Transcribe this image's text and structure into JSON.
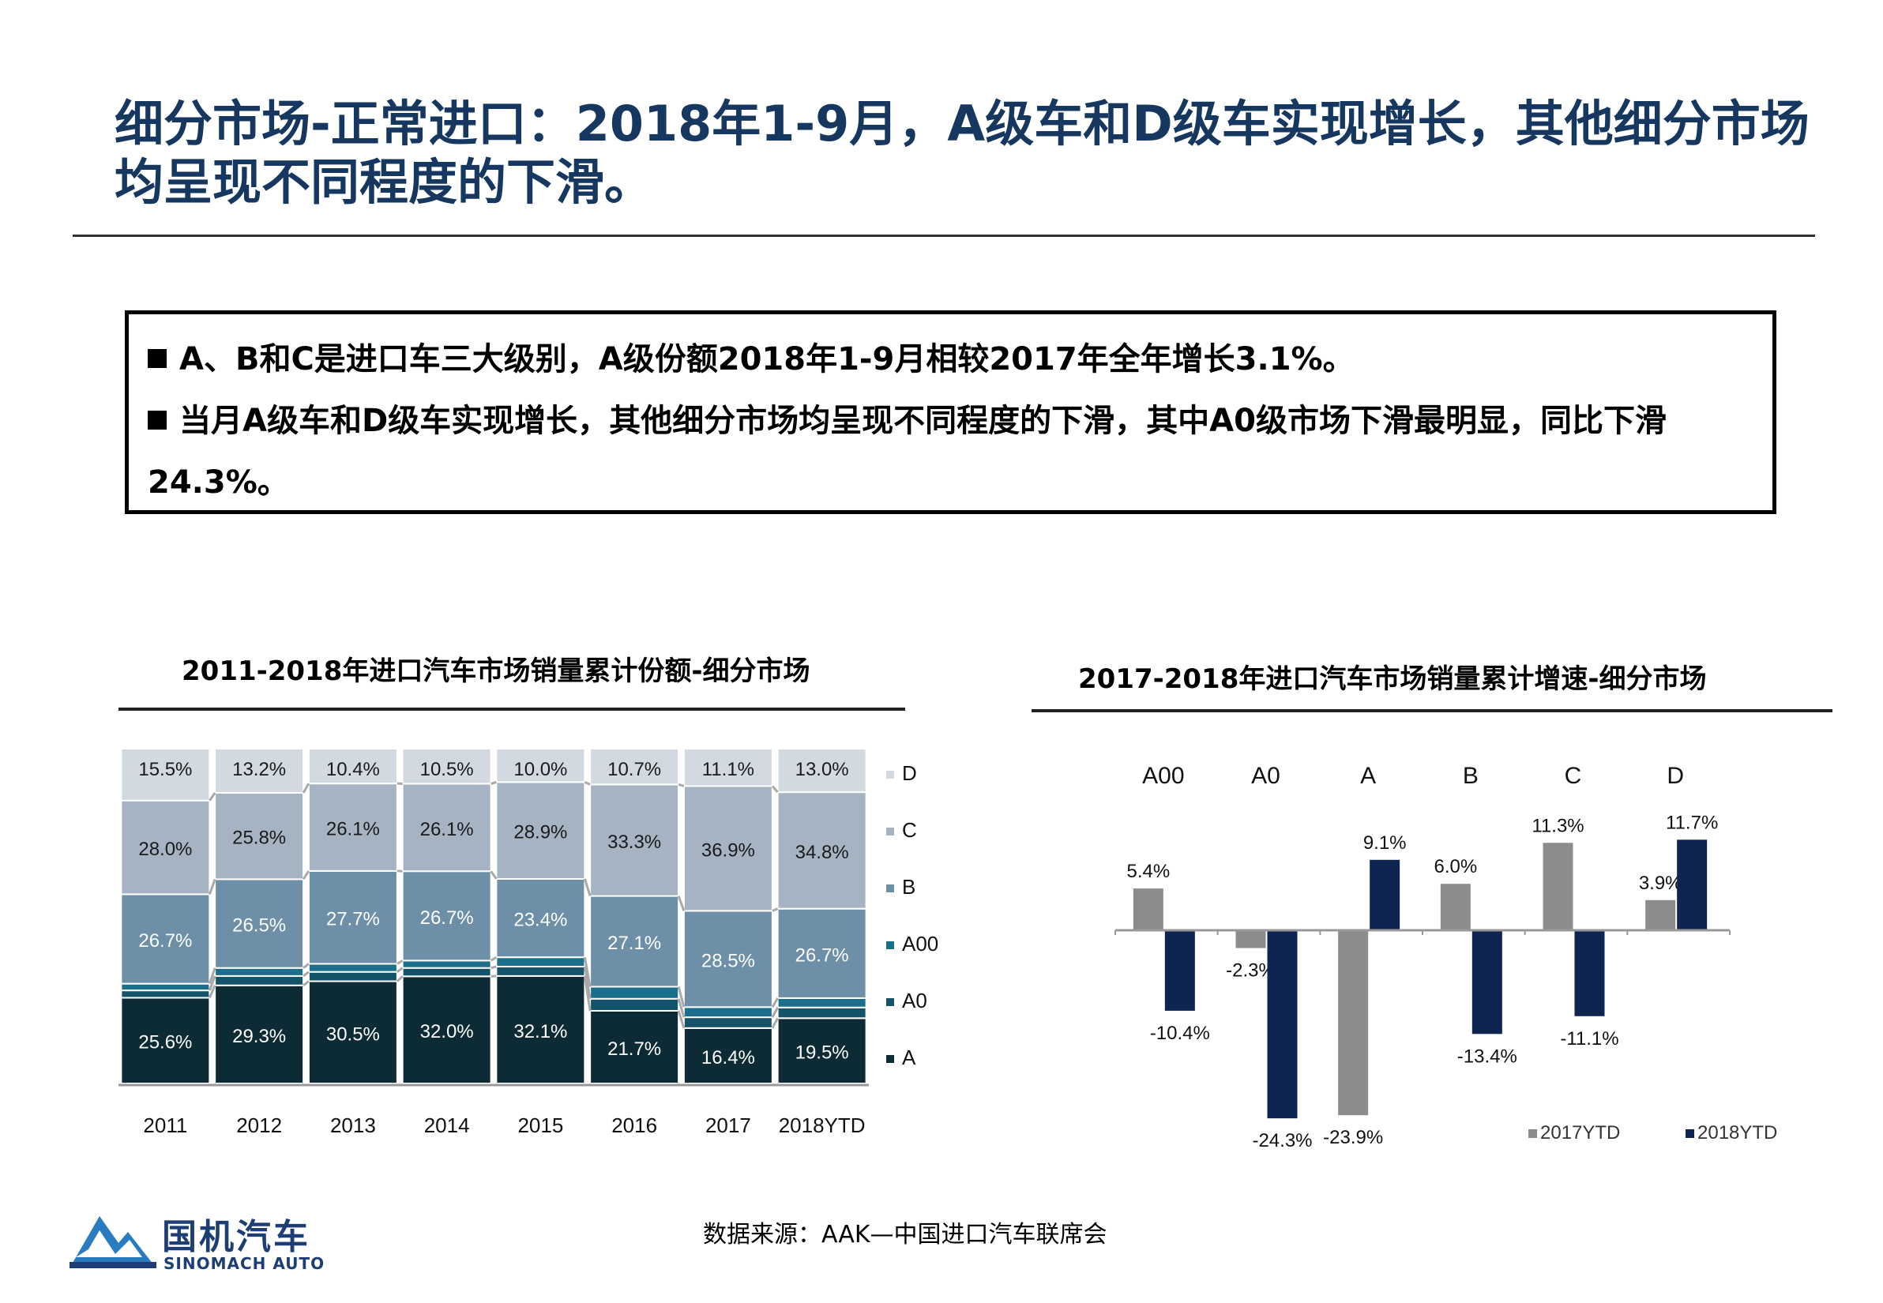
{
  "page": {
    "title": "细分市场-正常进口：2018年1-9月，A级车和D级车实现增长，其他细分市场均呈现不同程度的下滑。",
    "bullets": [
      "A、B和C是进口车三大级别，A级份额2018年1-9月相较2017年全年增长3.1%。",
      "当月A级车和D级车实现增长，其他细分市场均呈现不同程度的下滑，其中A0级市场下滑最明显，同比下滑24.3%。"
    ],
    "source": "数据来源：AAK—中国进口汽车联席会",
    "logo_cn": "国机汽车",
    "logo_en": "SINOMACH AUTO"
  },
  "chart_data": [
    {
      "type": "bar",
      "stacked": true,
      "normalized": true,
      "title": "2011-2018年进口汽车市场销量累计份额-细分市场",
      "categories": [
        "2011",
        "2012",
        "2013",
        "2014",
        "2015",
        "2016",
        "2017",
        "2018YTD"
      ],
      "series": [
        {
          "name": "A",
          "color": "#0c2b35",
          "values": [
            25.6,
            29.3,
            30.5,
            32.0,
            32.1,
            21.7,
            16.4,
            19.5
          ],
          "labels": [
            "25.6%",
            "29.3%",
            "30.5%",
            "32.0%",
            "32.1%",
            "21.7%",
            "16.4%",
            "19.5%"
          ]
        },
        {
          "name": "A0",
          "color": "#15536a",
          "values": [
            2.2,
            2.8,
            2.8,
            2.5,
            2.8,
            3.6,
            3.2,
            3.2
          ],
          "labels": []
        },
        {
          "name": "A00",
          "color": "#1c6f8a",
          "values": [
            2.0,
            2.4,
            2.4,
            2.2,
            2.8,
            3.6,
            3.0,
            2.8
          ],
          "labels": []
        },
        {
          "name": "B",
          "color": "#6e8fa8",
          "values": [
            26.7,
            26.5,
            27.7,
            26.7,
            23.4,
            27.1,
            28.5,
            26.7
          ],
          "labels": [
            "26.7%",
            "26.5%",
            "27.7%",
            "26.7%",
            "23.4%",
            "27.1%",
            "28.5%",
            "26.7%"
          ]
        },
        {
          "name": "C",
          "color": "#a5b3c3",
          "values": [
            28.0,
            25.8,
            26.1,
            26.1,
            28.9,
            33.3,
            36.9,
            34.8
          ],
          "labels": [
            "28.0%",
            "25.8%",
            "26.1%",
            "26.1%",
            "28.9%",
            "33.3%",
            "36.9%",
            "34.8%"
          ]
        },
        {
          "name": "D",
          "color": "#d3d9e1",
          "values": [
            15.5,
            13.2,
            10.4,
            10.5,
            10.0,
            10.7,
            11.1,
            13.0
          ],
          "labels": [
            "15.5%",
            "13.2%",
            "10.4%",
            "10.5%",
            "10.0%",
            "10.7%",
            "11.1%",
            "13.0%"
          ]
        }
      ],
      "legend": [
        "D",
        "C",
        "B",
        "A00",
        "A0",
        "A"
      ],
      "legend_position": "right",
      "series_lines": true
    },
    {
      "type": "bar",
      "title": "2017-2018年进口汽车市场销量累计增速-细分市场",
      "categories": [
        "A00",
        "A0",
        "A",
        "B",
        "C",
        "D"
      ],
      "series": [
        {
          "name": "2017YTD",
          "color": "#8c8c8c",
          "values": [
            5.4,
            -2.3,
            -23.9,
            6.0,
            11.3,
            3.9
          ],
          "labels": [
            "5.4%",
            "-2.3%",
            "-23.9%",
            "6.0%",
            "11.3%",
            "3.9%"
          ]
        },
        {
          "name": "2018YTD",
          "color": "#0d2550",
          "values": [
            -10.4,
            -24.3,
            9.1,
            -13.4,
            -11.1,
            11.7
          ],
          "labels": [
            "-10.4%",
            "-24.3%",
            "9.1%",
            "-13.4%",
            "-11.1%",
            "11.7%"
          ]
        }
      ],
      "legend_position": "bottom-right",
      "category_labels_position": "top"
    }
  ]
}
